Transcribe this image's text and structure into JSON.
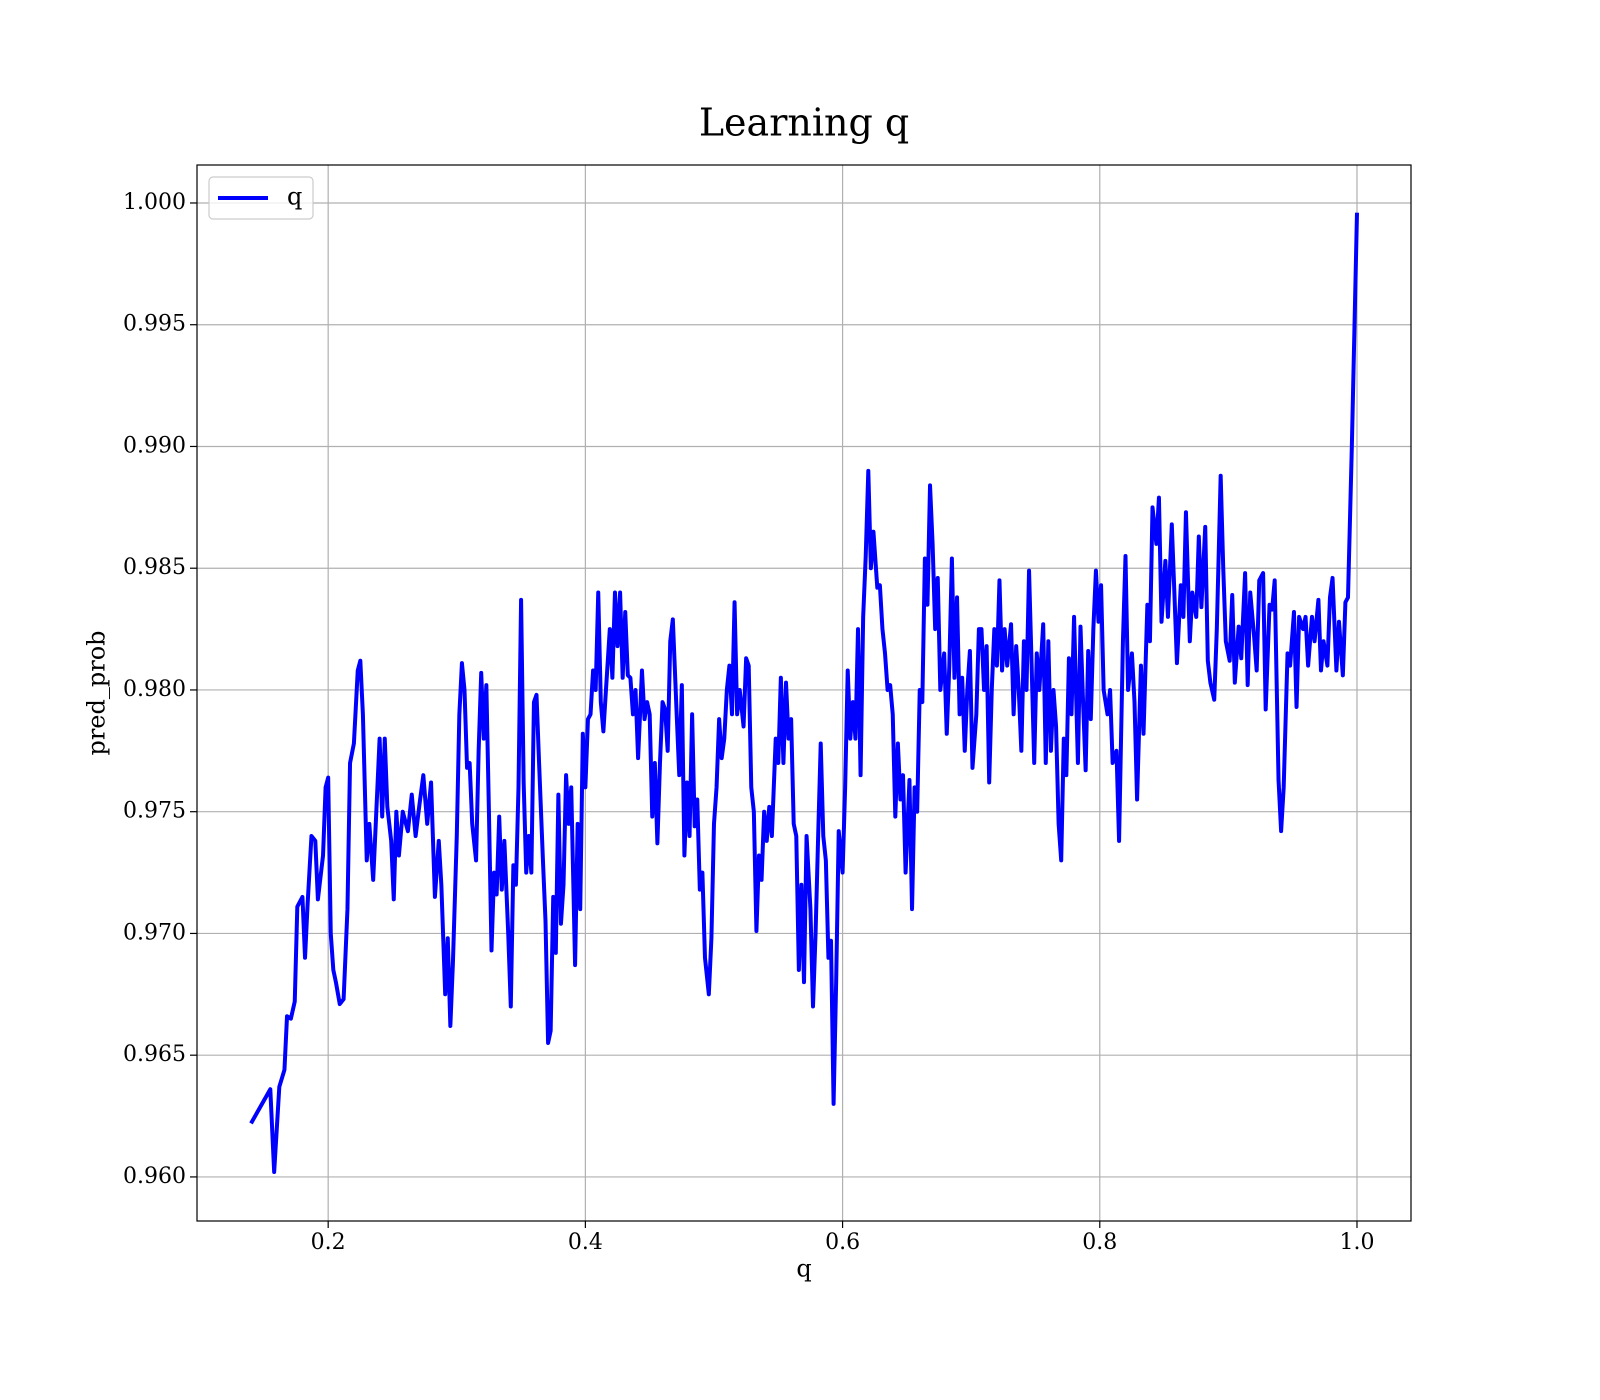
{
  "chart_data": {
    "type": "line",
    "title": "Learning q",
    "x_label": "q",
    "y_label": "pred_prob",
    "xlim": [
      0.098,
      1.042
    ],
    "ylim": [
      0.95819,
      1.00156
    ],
    "xticks": [
      0.2,
      0.4,
      0.6,
      0.8,
      {
        "value": 1.0,
        "label": "1.0"
      }
    ],
    "yticks": [
      {
        "value": 0.96,
        "label": "0.960"
      },
      {
        "value": 0.965,
        "label": "0.965"
      },
      {
        "value": 0.97,
        "label": "0.970"
      },
      {
        "value": 0.975,
        "label": "0.975"
      },
      {
        "value": 0.98,
        "label": "0.980"
      },
      {
        "value": 0.985,
        "label": "0.985"
      },
      {
        "value": 0.99,
        "label": "0.990"
      },
      {
        "value": 0.995,
        "label": "0.995"
      },
      {
        "value": 1.0,
        "label": "1.000"
      }
    ],
    "grid": true,
    "legend": "upper-left",
    "x": [
      0.14,
      0.155,
      0.158,
      0.162,
      0.166,
      0.168,
      0.171,
      0.174,
      0.176,
      0.18,
      0.182,
      0.184,
      0.187,
      0.19,
      0.192,
      0.196,
      0.198,
      0.2,
      0.202,
      0.204,
      0.206,
      0.209,
      0.212,
      0.215,
      0.217,
      0.22,
      0.223,
      0.225,
      0.227,
      0.23,
      0.232,
      0.235,
      0.237,
      0.24,
      0.242,
      0.244,
      0.246,
      0.249,
      0.251,
      0.253,
      0.255,
      0.258,
      0.262,
      0.265,
      0.268,
      0.271,
      0.274,
      0.277,
      0.28,
      0.283,
      0.286,
      0.288,
      0.291,
      0.293,
      0.295,
      0.297,
      0.3,
      0.302,
      0.304,
      0.306,
      0.308,
      0.31,
      0.312,
      0.315,
      0.317,
      0.319,
      0.321,
      0.323,
      0.325,
      0.327,
      0.329,
      0.331,
      0.333,
      0.335,
      0.337,
      0.34,
      0.342,
      0.344,
      0.346,
      0.348,
      0.35,
      0.352,
      0.354,
      0.356,
      0.358,
      0.36,
      0.362,
      0.364,
      0.367,
      0.369,
      0.371,
      0.373,
      0.375,
      0.377,
      0.379,
      0.381,
      0.383,
      0.385,
      0.387,
      0.389,
      0.392,
      0.394,
      0.396,
      0.398,
      0.4,
      0.402,
      0.404,
      0.406,
      0.408,
      0.41,
      0.412,
      0.414,
      0.416,
      0.419,
      0.421,
      0.423,
      0.425,
      0.427,
      0.429,
      0.431,
      0.433,
      0.435,
      0.437,
      0.439,
      0.441,
      0.444,
      0.446,
      0.448,
      0.45,
      0.452,
      0.454,
      0.456,
      0.458,
      0.46,
      0.462,
      0.464,
      0.466,
      0.468,
      0.471,
      0.473,
      0.475,
      0.477,
      0.479,
      0.481,
      0.483,
      0.485,
      0.487,
      0.489,
      0.491,
      0.493,
      0.496,
      0.498,
      0.5,
      0.502,
      0.504,
      0.506,
      0.508,
      0.51,
      0.512,
      0.514,
      0.516,
      0.518,
      0.52,
      0.523,
      0.525,
      0.527,
      0.529,
      0.531,
      0.533,
      0.535,
      0.537,
      0.539,
      0.541,
      0.543,
      0.545,
      0.548,
      0.55,
      0.552,
      0.554,
      0.556,
      0.558,
      0.56,
      0.562,
      0.564,
      0.566,
      0.568,
      0.57,
      0.572,
      0.575,
      0.577,
      0.579,
      0.581,
      0.583,
      0.585,
      0.587,
      0.589,
      0.591,
      0.593,
      0.595,
      0.597,
      0.6,
      0.602,
      0.604,
      0.606,
      0.608,
      0.61,
      0.612,
      0.614,
      0.616,
      0.618,
      0.62,
      0.622,
      0.624,
      0.627,
      0.629,
      0.631,
      0.633,
      0.635,
      0.637,
      0.639,
      0.641,
      0.643,
      0.645,
      0.647,
      0.649,
      0.652,
      0.654,
      0.656,
      0.658,
      0.66,
      0.662,
      0.664,
      0.666,
      0.668,
      0.67,
      0.672,
      0.674,
      0.676,
      0.679,
      0.681,
      0.683,
      0.685,
      0.687,
      0.689,
      0.691,
      0.693,
      0.695,
      0.697,
      0.699,
      0.701,
      0.704,
      0.706,
      0.708,
      0.71,
      0.712,
      0.714,
      0.716,
      0.718,
      0.72,
      0.722,
      0.724,
      0.726,
      0.728,
      0.731,
      0.733,
      0.735,
      0.737,
      0.739,
      0.741,
      0.743,
      0.745,
      0.747,
      0.749,
      0.751,
      0.753,
      0.756,
      0.758,
      0.76,
      0.762,
      0.764,
      0.766,
      0.768,
      0.77,
      0.772,
      0.774,
      0.776,
      0.778,
      0.78,
      0.783,
      0.785,
      0.787,
      0.789,
      0.791,
      0.793,
      0.795,
      0.797,
      0.799,
      0.801,
      0.803,
      0.806,
      0.808,
      0.81,
      0.813,
      0.815,
      0.818,
      0.82,
      0.822,
      0.825,
      0.827,
      0.829,
      0.832,
      0.834,
      0.837,
      0.839,
      0.841,
      0.844,
      0.846,
      0.848,
      0.851,
      0.853,
      0.856,
      0.858,
      0.86,
      0.863,
      0.865,
      0.867,
      0.87,
      0.872,
      0.875,
      0.877,
      0.879,
      0.882,
      0.884,
      0.886,
      0.889,
      0.891,
      0.894,
      0.896,
      0.898,
      0.901,
      0.903,
      0.905,
      0.908,
      0.91,
      0.913,
      0.915,
      0.917,
      0.92,
      0.922,
      0.924,
      0.927,
      0.929,
      0.932,
      0.934,
      0.936,
      0.939,
      0.941,
      0.943,
      0.946,
      0.948,
      0.951,
      0.953,
      0.955,
      0.958,
      0.96,
      0.962,
      0.965,
      0.967,
      0.97,
      0.972,
      0.974,
      0.977,
      0.979,
      0.981,
      0.984,
      0.986,
      0.989,
      0.991,
      0.993,
      0.996,
      0.998,
      1.0
    ],
    "series": [
      {
        "name": "q",
        "color": "#0000ff",
        "values": [
          0.9622,
          0.9636,
          0.9602,
          0.9637,
          0.9644,
          0.9666,
          0.9665,
          0.9672,
          0.9711,
          0.9715,
          0.969,
          0.9712,
          0.974,
          0.9738,
          0.9714,
          0.9732,
          0.976,
          0.9764,
          0.97,
          0.9685,
          0.968,
          0.9671,
          0.9673,
          0.971,
          0.977,
          0.9778,
          0.9808,
          0.9812,
          0.979,
          0.973,
          0.9745,
          0.9722,
          0.9745,
          0.978,
          0.9748,
          0.978,
          0.9752,
          0.9738,
          0.9714,
          0.975,
          0.9732,
          0.975,
          0.9742,
          0.9757,
          0.974,
          0.9753,
          0.9765,
          0.9745,
          0.9762,
          0.9715,
          0.9738,
          0.972,
          0.9675,
          0.9698,
          0.9662,
          0.9688,
          0.974,
          0.979,
          0.9811,
          0.98,
          0.9768,
          0.977,
          0.9745,
          0.973,
          0.9775,
          0.9807,
          0.978,
          0.9802,
          0.975,
          0.9693,
          0.9725,
          0.9716,
          0.9748,
          0.9718,
          0.9738,
          0.97,
          0.967,
          0.9728,
          0.972,
          0.976,
          0.9837,
          0.9762,
          0.9725,
          0.974,
          0.9725,
          0.9795,
          0.9798,
          0.977,
          0.973,
          0.9705,
          0.9655,
          0.966,
          0.9715,
          0.9692,
          0.9757,
          0.9704,
          0.972,
          0.9765,
          0.9745,
          0.976,
          0.9687,
          0.9745,
          0.971,
          0.9782,
          0.976,
          0.9788,
          0.979,
          0.9808,
          0.98,
          0.984,
          0.9795,
          0.9783,
          0.98,
          0.9825,
          0.9805,
          0.984,
          0.9818,
          0.984,
          0.9805,
          0.9832,
          0.9806,
          0.9805,
          0.979,
          0.98,
          0.9772,
          0.9808,
          0.9788,
          0.9795,
          0.979,
          0.9748,
          0.977,
          0.9737,
          0.977,
          0.9795,
          0.9792,
          0.9775,
          0.982,
          0.9829,
          0.979,
          0.9765,
          0.9802,
          0.9732,
          0.9762,
          0.974,
          0.979,
          0.9744,
          0.9755,
          0.9718,
          0.9725,
          0.969,
          0.9675,
          0.9698,
          0.9745,
          0.976,
          0.9788,
          0.9772,
          0.978,
          0.98,
          0.981,
          0.979,
          0.9836,
          0.979,
          0.98,
          0.9785,
          0.9813,
          0.981,
          0.976,
          0.975,
          0.9701,
          0.9732,
          0.9722,
          0.975,
          0.9738,
          0.9752,
          0.974,
          0.978,
          0.977,
          0.9805,
          0.977,
          0.9803,
          0.978,
          0.9788,
          0.9745,
          0.974,
          0.9685,
          0.972,
          0.968,
          0.974,
          0.971,
          0.967,
          0.97,
          0.974,
          0.9778,
          0.974,
          0.973,
          0.969,
          0.9697,
          0.963,
          0.968,
          0.9742,
          0.9725,
          0.976,
          0.9808,
          0.978,
          0.9795,
          0.978,
          0.9825,
          0.9765,
          0.983,
          0.9855,
          0.989,
          0.985,
          0.9865,
          0.9842,
          0.9843,
          0.9825,
          0.9815,
          0.98,
          0.9802,
          0.979,
          0.9748,
          0.9778,
          0.9755,
          0.9765,
          0.9725,
          0.9763,
          0.971,
          0.976,
          0.975,
          0.98,
          0.9795,
          0.9854,
          0.9835,
          0.9884,
          0.986,
          0.9825,
          0.9846,
          0.98,
          0.9815,
          0.9782,
          0.981,
          0.9854,
          0.9805,
          0.9838,
          0.979,
          0.9805,
          0.9775,
          0.98,
          0.9816,
          0.9768,
          0.979,
          0.9825,
          0.9825,
          0.98,
          0.9818,
          0.9762,
          0.98,
          0.9825,
          0.981,
          0.9845,
          0.9808,
          0.9825,
          0.981,
          0.9827,
          0.979,
          0.9818,
          0.98,
          0.9775,
          0.982,
          0.98,
          0.9849,
          0.981,
          0.977,
          0.9815,
          0.98,
          0.9827,
          0.977,
          0.982,
          0.9775,
          0.98,
          0.9785,
          0.9745,
          0.973,
          0.978,
          0.9765,
          0.9813,
          0.979,
          0.983,
          0.977,
          0.9826,
          0.9795,
          0.9767,
          0.9816,
          0.9788,
          0.9825,
          0.9849,
          0.9828,
          0.9843,
          0.98,
          0.979,
          0.98,
          0.977,
          0.9775,
          0.9738,
          0.982,
          0.9855,
          0.98,
          0.9815,
          0.9795,
          0.9755,
          0.981,
          0.9782,
          0.9835,
          0.982,
          0.9875,
          0.986,
          0.9879,
          0.9828,
          0.9853,
          0.983,
          0.9868,
          0.984,
          0.9811,
          0.9843,
          0.983,
          0.9873,
          0.982,
          0.984,
          0.983,
          0.9863,
          0.9834,
          0.9867,
          0.9812,
          0.9803,
          0.9796,
          0.9825,
          0.9888,
          0.985,
          0.982,
          0.9812,
          0.9839,
          0.9803,
          0.9826,
          0.9813,
          0.9848,
          0.9802,
          0.984,
          0.9822,
          0.9808,
          0.9845,
          0.9848,
          0.9792,
          0.9835,
          0.9833,
          0.9845,
          0.9763,
          0.9742,
          0.976,
          0.9815,
          0.981,
          0.9832,
          0.9793,
          0.983,
          0.9825,
          0.983,
          0.981,
          0.983,
          0.982,
          0.9837,
          0.9808,
          0.982,
          0.981,
          0.9838,
          0.9846,
          0.9808,
          0.9828,
          0.9806,
          0.9836,
          0.9838,
          0.99,
          0.9948,
          0.9996
        ]
      }
    ]
  }
}
